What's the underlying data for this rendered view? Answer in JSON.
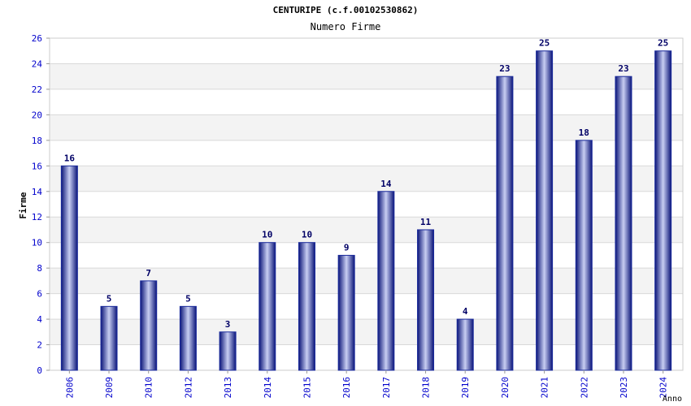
{
  "chart_data": {
    "type": "bar",
    "title": "CENTURIPE (c.f.00102530862)",
    "subtitle": "Numero Firme",
    "xlabel": "Anno",
    "ylabel": "Firme",
    "ylim": [
      0,
      26
    ],
    "yticks": [
      0,
      2,
      4,
      6,
      8,
      10,
      12,
      14,
      16,
      18,
      20,
      22,
      24,
      26
    ],
    "categories": [
      "2006",
      "2009",
      "2010",
      "2012",
      "2013",
      "2014",
      "2015",
      "2016",
      "2017",
      "2018",
      "2019",
      "2020",
      "2021",
      "2022",
      "2023",
      "2024"
    ],
    "values": [
      16,
      5,
      7,
      5,
      3,
      10,
      10,
      9,
      14,
      11,
      4,
      23,
      25,
      18,
      23,
      25
    ],
    "grid": true,
    "bar_color": "#1a2a9c",
    "tick_label_color": "#0000cc",
    "value_label_color": "#000066"
  }
}
